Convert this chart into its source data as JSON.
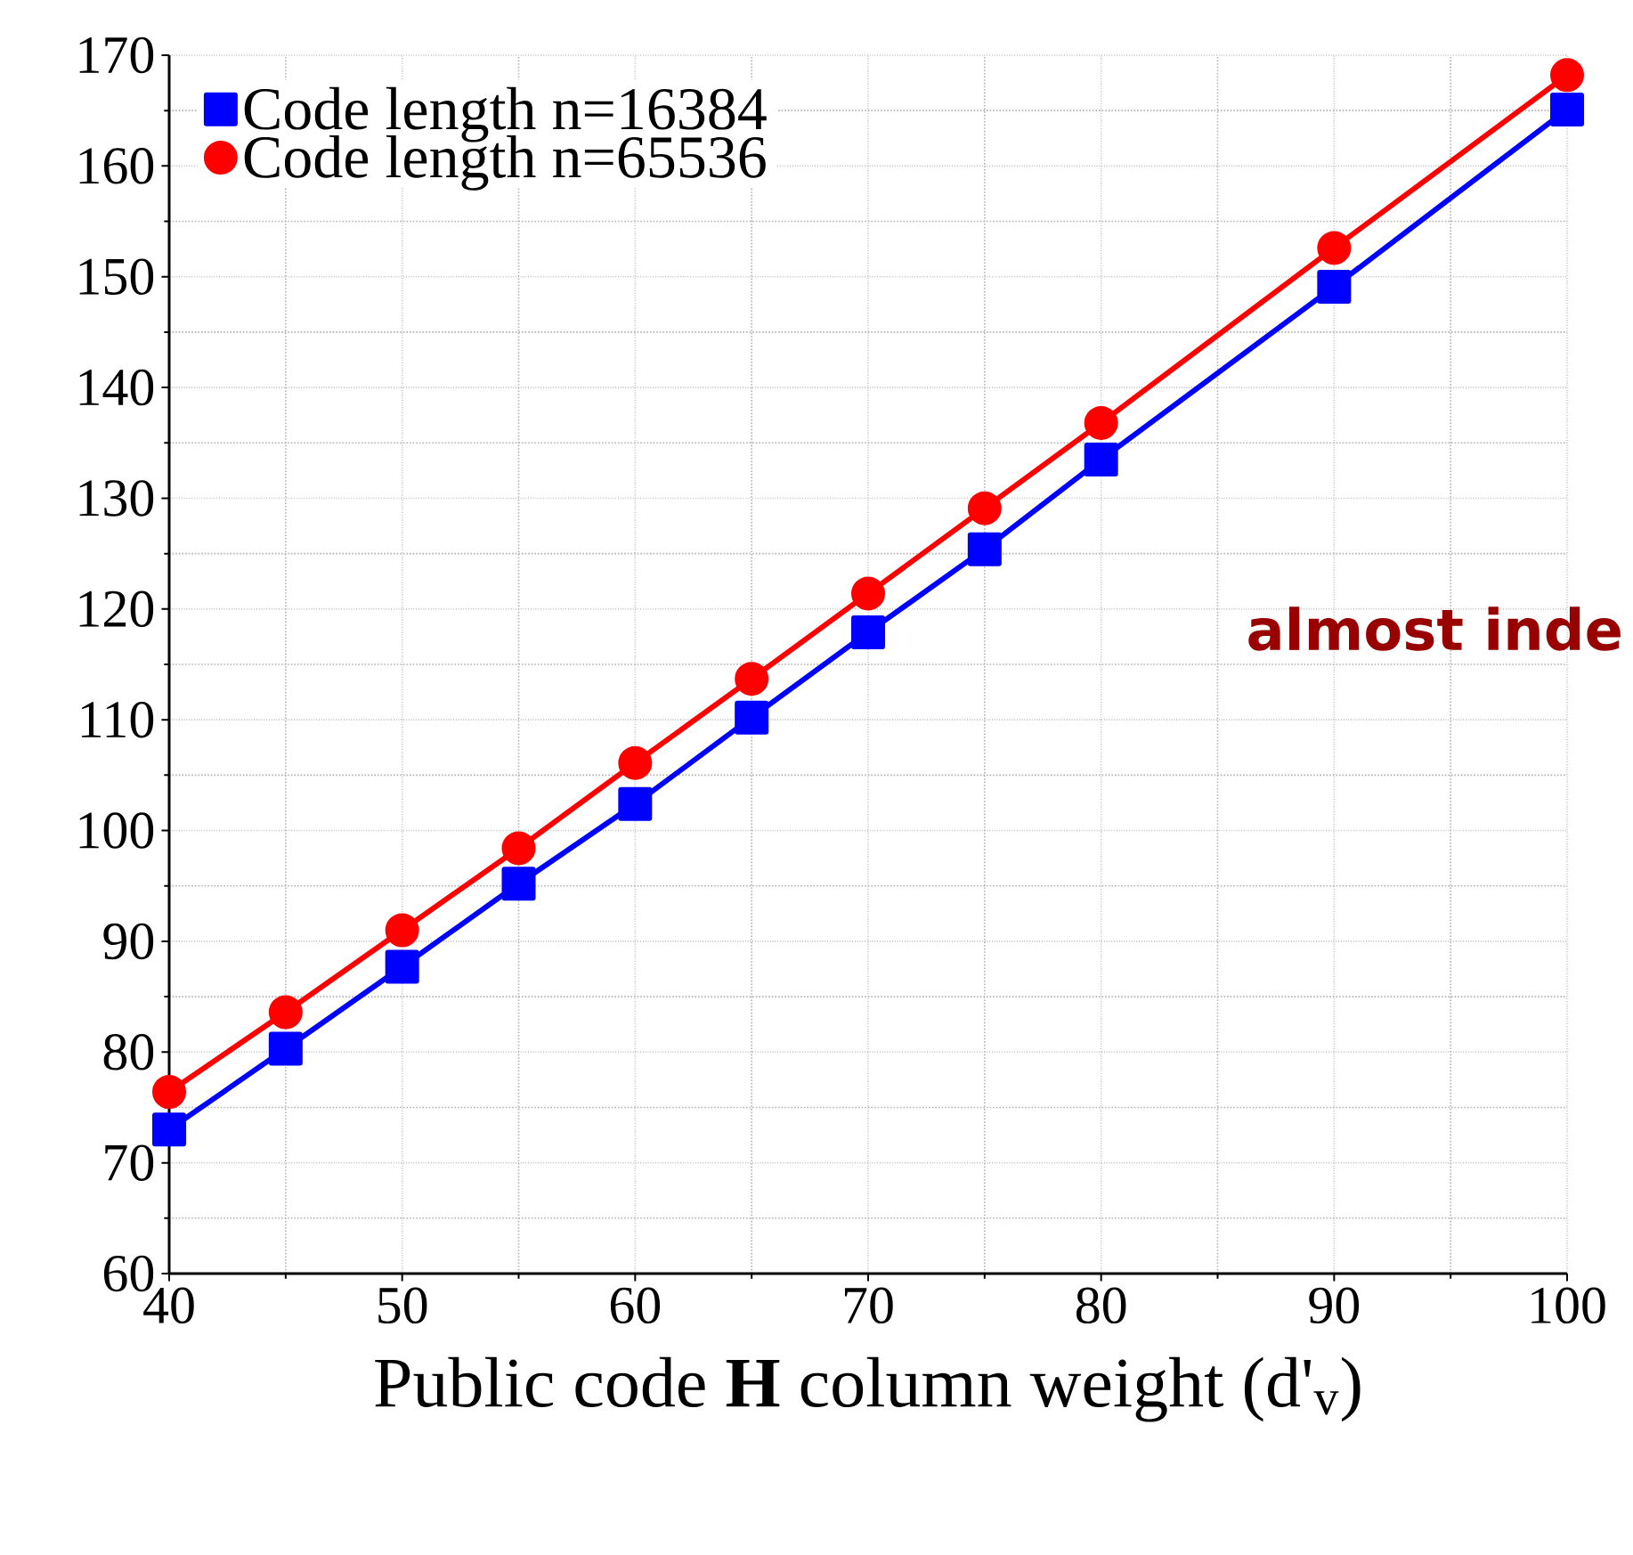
{
  "chart_data": {
    "type": "line",
    "xlabel": "Public code **H** column weight (d'$_{v}$)",
    "x": [
      40,
      45,
      50,
      55,
      60,
      65,
      70,
      75,
      80,
      90,
      100
    ],
    "series": [
      {
        "name": "Code length n=16384",
        "color": "#0000ff",
        "marker": "square",
        "values": [
          73.0,
          80.3,
          87.7,
          95.2,
          102.4,
          110.2,
          117.9,
          125.4,
          133.5,
          149.1,
          165.1
        ]
      },
      {
        "name": "Code length n=65536",
        "color": "#ff0000",
        "marker": "circle",
        "values": [
          76.4,
          83.6,
          91.0,
          98.4,
          106.1,
          113.7,
          121.4,
          129.1,
          136.8,
          152.6,
          168.2
        ]
      }
    ],
    "xlim": [
      40,
      100
    ],
    "ylim": [
      60,
      170
    ],
    "xticks": [
      40,
      50,
      60,
      70,
      80,
      90,
      100
    ],
    "yticks": [
      60,
      70,
      80,
      90,
      100,
      110,
      120,
      130,
      140,
      150,
      160,
      170
    ],
    "grid": true,
    "legend": "top left",
    "line_style": "solid",
    "annotations": [
      "almost inde"
    ]
  }
}
